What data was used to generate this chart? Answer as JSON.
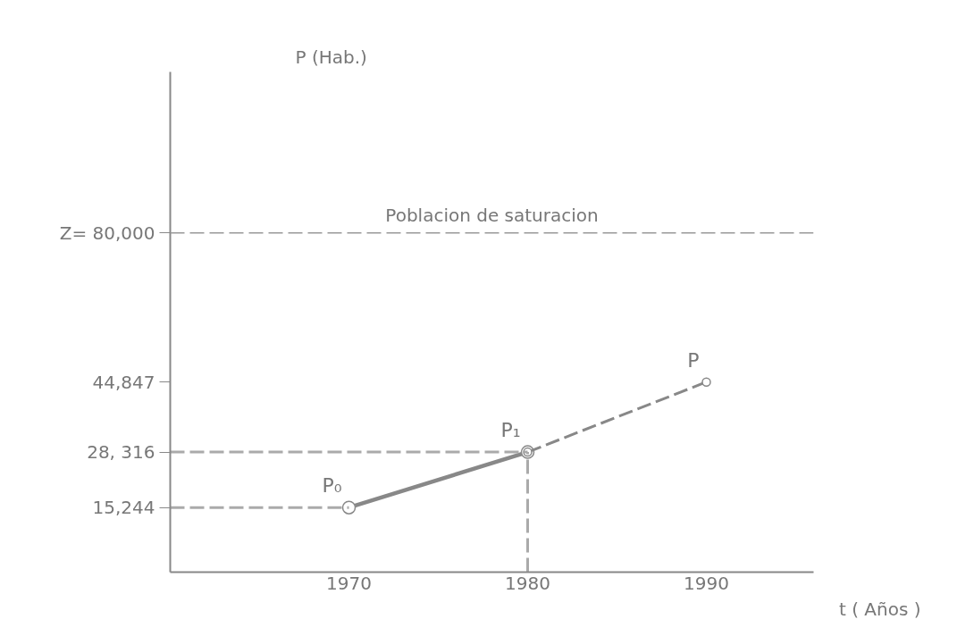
{
  "chart_data": {
    "type": "line",
    "xlabel": "t ( Años )",
    "ylabel": "P (Hab.)",
    "xlim": [
      1960,
      1996
    ],
    "ylim": [
      0,
      118000
    ],
    "xticks": [
      1970,
      1980,
      1990
    ],
    "yticks": [
      {
        "value": 15244,
        "label": "15,244"
      },
      {
        "value": 28316,
        "label": "28, 316"
      },
      {
        "value": 44847,
        "label": "44,847"
      },
      {
        "value": 80000,
        "label": "Z= 80,000"
      }
    ],
    "series": [
      {
        "x": [
          1970,
          1980
        ],
        "values": [
          15244,
          28316
        ],
        "color": "#888888",
        "line_style": "solid",
        "marker": "circle"
      },
      {
        "x": [
          1980,
          1990
        ],
        "values": [
          28316,
          44847
        ],
        "color": "#888888",
        "line_style": "dashed",
        "marker": "circle"
      },
      {
        "x": [
          1960,
          1970
        ],
        "values": [
          15244,
          15244
        ],
        "color": "#aaaaaa",
        "line_style": "dashed",
        "marker": "none"
      },
      {
        "x": [
          1960,
          1980
        ],
        "values": [
          28316,
          28316
        ],
        "color": "#aaaaaa",
        "line_style": "dashed",
        "marker": "none"
      },
      {
        "x": [
          1980,
          1980
        ],
        "values": [
          0,
          28316
        ],
        "color": "#aaaaaa",
        "line_style": "dashed",
        "marker": "none"
      }
    ],
    "ref_lines": [
      {
        "axis": "y",
        "value": 80000,
        "label": "Poblacion de saturacion",
        "color": "#999999",
        "line_style": "dashed"
      }
    ],
    "annotations": [
      {
        "text": "P₀",
        "x": 1970,
        "y": 15244
      },
      {
        "text": "P₁",
        "x": 1980,
        "y": 28316
      },
      {
        "text": "P",
        "x": 1990,
        "y": 44847
      }
    ],
    "grid": false
  }
}
